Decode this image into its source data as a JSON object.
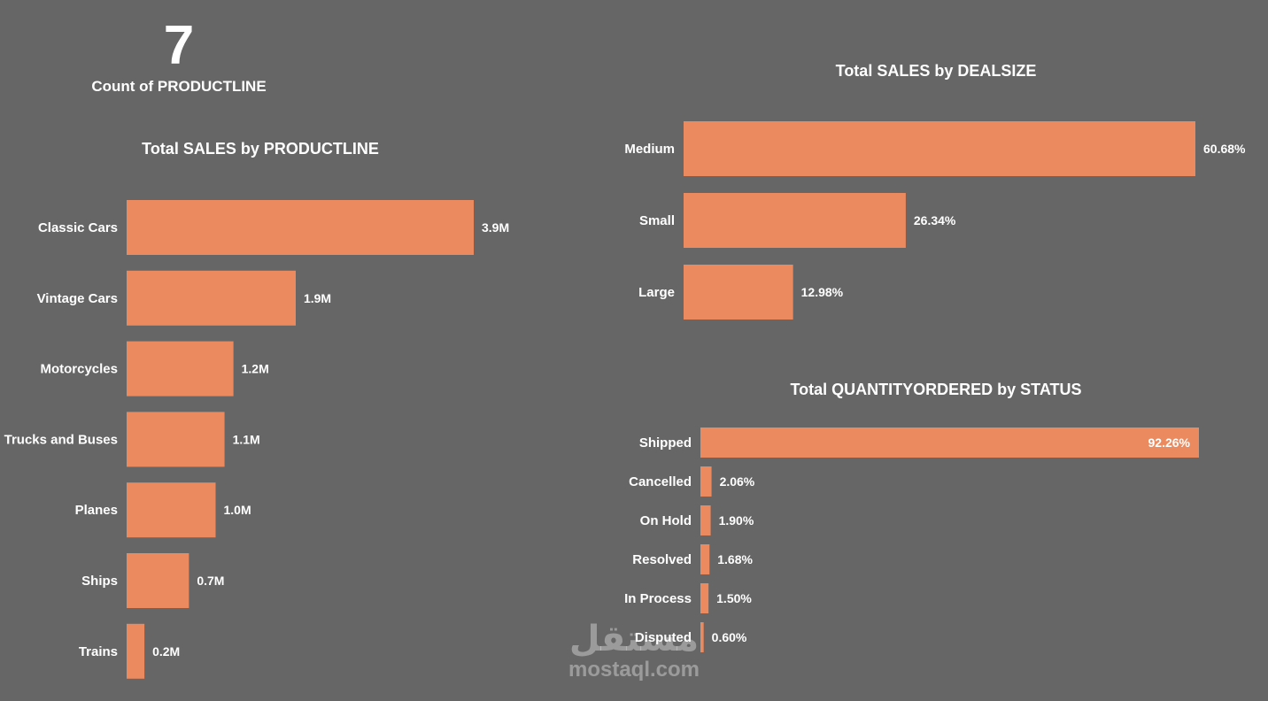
{
  "kpi": {
    "value": "7",
    "label": "Count of PRODUCTLINE"
  },
  "watermark": {
    "arabic": "مستقل",
    "url": "mostaql.com"
  },
  "chart_data": [
    {
      "id": "productline",
      "type": "bar",
      "orientation": "horizontal",
      "title": "Total SALES by PRODUCTLINE",
      "categories": [
        "Classic Cars",
        "Vintage Cars",
        "Motorcycles",
        "Trucks and Buses",
        "Planes",
        "Ships",
        "Trains"
      ],
      "values": [
        3.9,
        1.9,
        1.2,
        1.1,
        1.0,
        0.7,
        0.2
      ],
      "value_labels": [
        "3.9M",
        "1.9M",
        "1.2M",
        "1.1M",
        "1.0M",
        "0.7M",
        "0.2M"
      ],
      "unit": "M",
      "color": "#eb8a5f",
      "grid": false
    },
    {
      "id": "dealsize",
      "type": "bar",
      "orientation": "horizontal",
      "title": "Total SALES by DEALSIZE",
      "categories": [
        "Medium",
        "Small",
        "Large"
      ],
      "values": [
        60.68,
        26.34,
        12.98
      ],
      "value_labels": [
        "60.68%",
        "26.34%",
        "12.98%"
      ],
      "unit": "%",
      "color": "#eb8a5f",
      "grid": false
    },
    {
      "id": "status",
      "type": "bar",
      "orientation": "horizontal",
      "title": "Total QUANTITYORDERED by STATUS",
      "categories": [
        "Shipped",
        "Cancelled",
        "On Hold",
        "Resolved",
        "In Process",
        "Disputed"
      ],
      "values": [
        92.26,
        2.06,
        1.9,
        1.68,
        1.5,
        0.6
      ],
      "value_labels": [
        "92.26%",
        "2.06%",
        "1.90%",
        "1.68%",
        "1.50%",
        "0.60%"
      ],
      "unit": "%",
      "color": "#eb8a5f",
      "grid": false
    }
  ]
}
